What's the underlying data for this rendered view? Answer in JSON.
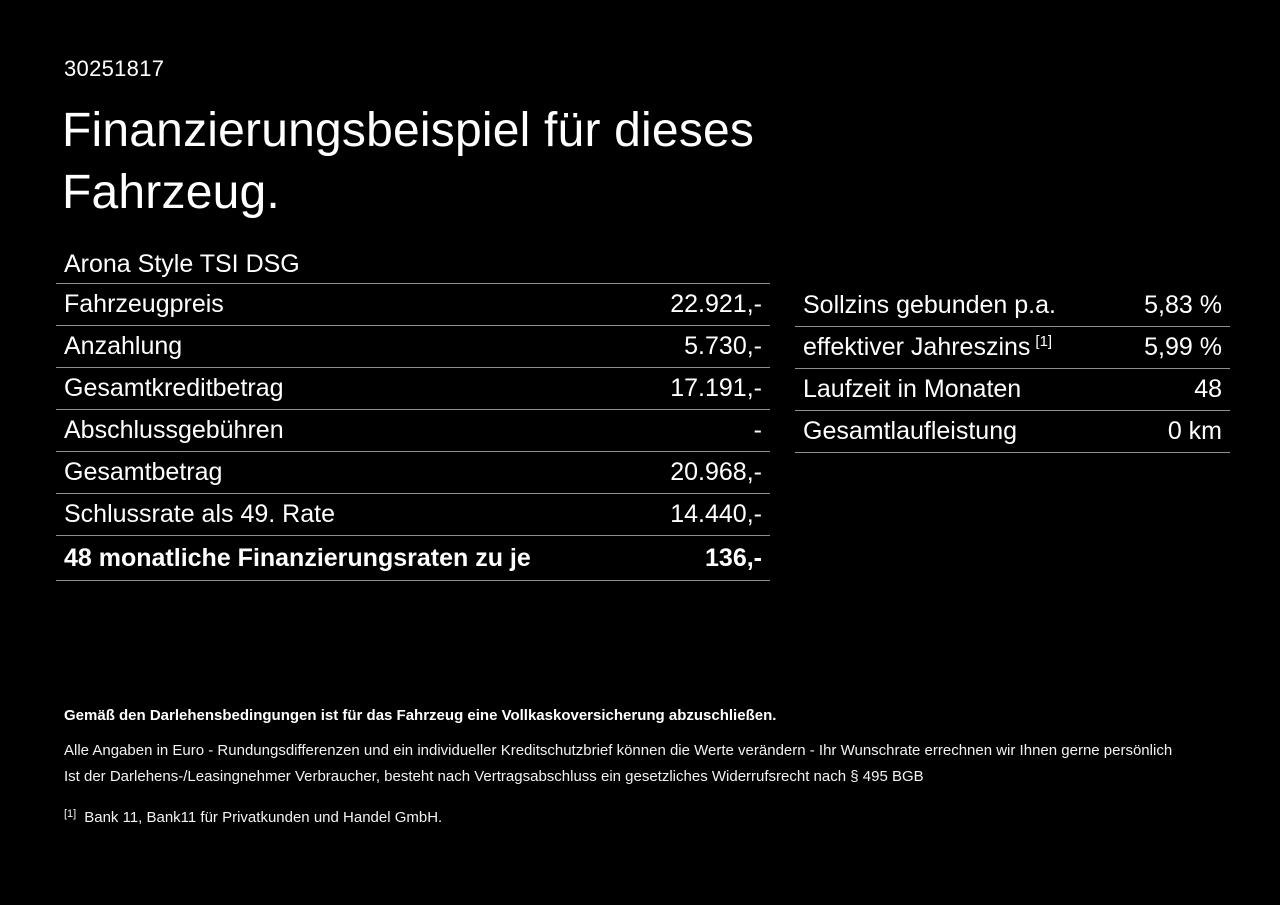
{
  "colors": {
    "background": "#000000",
    "text": "#ffffff",
    "divider": "#909090"
  },
  "header": {
    "doc_number": "30251817",
    "title_line1": "Finanzierungsbeispiel für dieses",
    "title_line2": "Fahrzeug.",
    "vehicle_name": "Arona Style TSI DSG"
  },
  "finance_left": {
    "rows": [
      {
        "label": "Fahrzeugpreis",
        "value": "22.921,-"
      },
      {
        "label": "Anzahlung",
        "value": "5.730,-"
      },
      {
        "label": "Gesamtkreditbetrag",
        "value": "17.191,-"
      },
      {
        "label": "Abschlussgebühren",
        "value": "-"
      },
      {
        "label": "Gesamtbetrag",
        "value": "20.968,-"
      },
      {
        "label": "Schlussrate als 49. Rate",
        "value": "14.440,-"
      },
      {
        "label": "48 monatliche Finanzierungsraten zu je",
        "value": "136,-"
      }
    ]
  },
  "finance_right": {
    "rows": [
      {
        "label": "Sollzins gebunden p.a.",
        "value": "5,83 %"
      },
      {
        "label": "effektiver Jahreszins",
        "sup": "[1]",
        "value": "5,99 %"
      },
      {
        "label": "Laufzeit in Monaten",
        "value": "48"
      },
      {
        "label": "Gesamtlaufleistung",
        "value": "0 km"
      }
    ]
  },
  "footer": {
    "bold_note": "Gemäß den Darlehensbedingungen ist für das Fahrzeug eine Vollkaskoversicherung abzuschließen.",
    "note_line1": "Alle Angaben in Euro - Rundungsdifferenzen und ein individueller Kreditschutzbrief können die Werte verändern - Ihr Wunschrate errechnen wir Ihnen gerne persönlich",
    "note_line2": "Ist der Darlehens-/Leasingnehmer Verbraucher, besteht nach Vertragsabschluss ein gesetzliches Widerrufsrecht nach § 495 BGB",
    "footnote_marker": "[1]",
    "footnote_text": "Bank 11, Bank11 für Privatkunden und Handel GmbH."
  }
}
